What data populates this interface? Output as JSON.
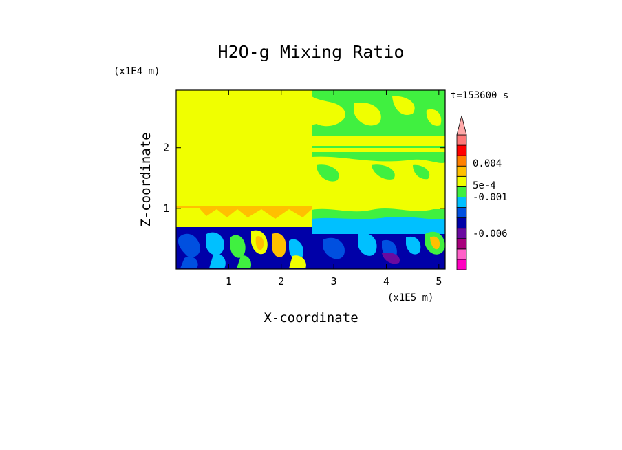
{
  "chart_data": {
    "type": "heatmap",
    "title": "H2O-g Mixing Ratio",
    "xlabel": "X-coordinate",
    "ylabel": "Z-coordinate",
    "x_scale_label": "(x1E5 m)",
    "y_scale_label": "(x1E4 m)",
    "time_label": "t=153600 s",
    "xlim": [
      0,
      5.12
    ],
    "ylim": [
      0,
      2.95
    ],
    "x_ticks": [
      1,
      2,
      3,
      4,
      5
    ],
    "x_tick_labels": [
      "1",
      "2",
      "3",
      "4",
      "5"
    ],
    "y_ticks": [
      1,
      2
    ],
    "y_tick_labels": [
      "1",
      "2"
    ],
    "colorbar": {
      "colors": [
        "#ff00c0",
        "#ff60c8",
        "#a8007c",
        "#6a0aa0",
        "#0000a8",
        "#0050e0",
        "#00c0ff",
        "#40f040",
        "#f0ff00",
        "#ffc000",
        "#ff8000",
        "#ff0000",
        "#ff7878",
        "#ffa8a8"
      ],
      "extend_top": true,
      "tick_labels": [
        "0.004",
        "5e-4",
        "-0.001",
        "-0.006"
      ]
    }
  }
}
